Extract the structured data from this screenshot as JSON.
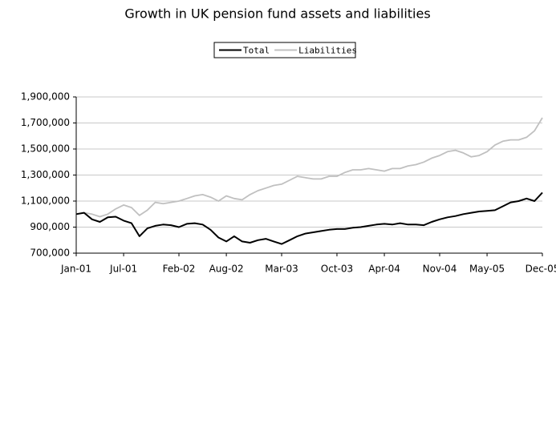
{
  "chart_data": {
    "type": "line",
    "title": "Growth in UK pension fund assets and liabilities",
    "categories": [
      "Jan-01",
      null,
      null,
      null,
      null,
      null,
      "Jul-01",
      null,
      null,
      null,
      null,
      null,
      null,
      "Feb-02",
      null,
      null,
      null,
      null,
      null,
      "Aug-02",
      null,
      null,
      null,
      null,
      null,
      null,
      "Mar-03",
      null,
      null,
      null,
      null,
      null,
      null,
      "Oct-03",
      null,
      null,
      null,
      null,
      null,
      "Apr-04",
      null,
      null,
      null,
      null,
      null,
      null,
      "Nov-04",
      null,
      null,
      null,
      null,
      null,
      "May-05",
      null,
      null,
      null,
      null,
      null,
      null,
      "Dec-05"
    ],
    "series": [
      {
        "name": "Total",
        "color": "#000000",
        "values": [
          1000000,
          1010000,
          960000,
          940000,
          975000,
          980000,
          950000,
          930000,
          830000,
          890000,
          910000,
          920000,
          915000,
          900000,
          925000,
          930000,
          920000,
          880000,
          820000,
          790000,
          830000,
          790000,
          780000,
          800000,
          810000,
          790000,
          770000,
          800000,
          830000,
          850000,
          860000,
          870000,
          880000,
          885000,
          885000,
          895000,
          900000,
          910000,
          920000,
          925000,
          920000,
          930000,
          920000,
          920000,
          915000,
          940000,
          960000,
          975000,
          985000,
          1000000,
          1010000,
          1020000,
          1025000,
          1030000,
          1060000,
          1090000,
          1100000,
          1120000,
          1100000,
          1165000
        ]
      },
      {
        "name": "Liabilities",
        "color": "#c0c0c0",
        "values": [
          1000000,
          1010000,
          1000000,
          980000,
          1000000,
          1040000,
          1070000,
          1050000,
          990000,
          1030000,
          1090000,
          1080000,
          1090000,
          1100000,
          1120000,
          1140000,
          1150000,
          1130000,
          1100000,
          1140000,
          1120000,
          1110000,
          1150000,
          1180000,
          1200000,
          1220000,
          1230000,
          1260000,
          1290000,
          1280000,
          1270000,
          1270000,
          1290000,
          1290000,
          1320000,
          1340000,
          1340000,
          1350000,
          1340000,
          1330000,
          1350000,
          1350000,
          1370000,
          1380000,
          1400000,
          1430000,
          1450000,
          1480000,
          1490000,
          1470000,
          1440000,
          1450000,
          1480000,
          1530000,
          1560000,
          1570000,
          1570000,
          1590000,
          1640000,
          1740000
        ]
      }
    ],
    "ylim": [
      700000,
      1900000
    ],
    "yticks": [
      {
        "value": 700000,
        "label": "700,000"
      },
      {
        "value": 900000,
        "label": "900,000"
      },
      {
        "value": 1100000,
        "label": "1,100,000"
      },
      {
        "value": 1300000,
        "label": "1,300,000"
      },
      {
        "value": 1500000,
        "label": "1,500,000"
      },
      {
        "value": 1700000,
        "label": "1,700,000"
      },
      {
        "value": 1900000,
        "label": "1,900,000"
      }
    ],
    "grid": true,
    "legend": "top"
  }
}
